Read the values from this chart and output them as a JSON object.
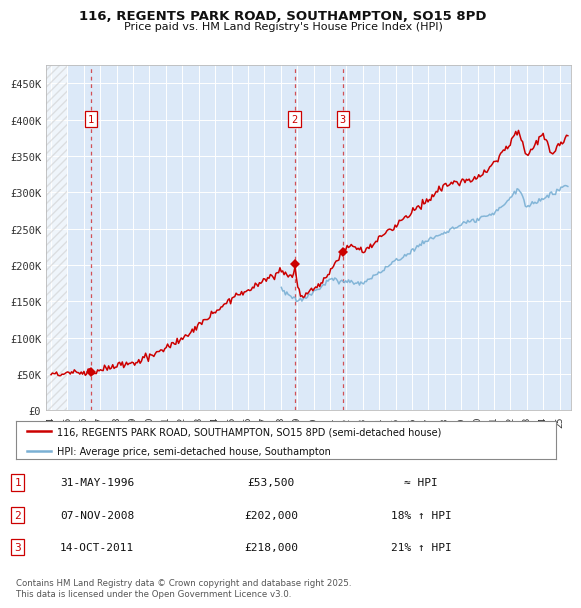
{
  "title1": "116, REGENTS PARK ROAD, SOUTHAMPTON, SO15 8PD",
  "title2": "Price paid vs. HM Land Registry's House Price Index (HPI)",
  "legend_red": "116, REGENTS PARK ROAD, SOUTHAMPTON, SO15 8PD (semi-detached house)",
  "legend_blue": "HPI: Average price, semi-detached house, Southampton",
  "fig_bg": "#ffffff",
  "plot_bg": "#dce9f8",
  "grid_color": "#ffffff",
  "red_color": "#cc0000",
  "blue_color": "#7ab0d4",
  "transactions": [
    {
      "num": 1,
      "date_x": 1996.42,
      "price": 53500,
      "label": "1",
      "date_str": "31-MAY-1996",
      "vs_hpi": "≈ HPI"
    },
    {
      "num": 2,
      "date_x": 2008.84,
      "price": 202000,
      "label": "2",
      "date_str": "07-NOV-2008",
      "vs_hpi": "18% ↑ HPI"
    },
    {
      "num": 3,
      "date_x": 2011.79,
      "price": 218000,
      "label": "3",
      "date_str": "14-OCT-2011",
      "vs_hpi": "21% ↑ HPI"
    }
  ],
  "footer": "Contains HM Land Registry data © Crown copyright and database right 2025.\nThis data is licensed under the Open Government Licence v3.0.",
  "ylim": [
    0,
    475000
  ],
  "xlim": [
    1993.7,
    2025.7
  ],
  "yticks": [
    0,
    50000,
    100000,
    150000,
    200000,
    250000,
    300000,
    350000,
    400000,
    450000
  ],
  "ytick_labels": [
    "£0",
    "£50K",
    "£100K",
    "£150K",
    "£200K",
    "£250K",
    "£300K",
    "£350K",
    "£400K",
    "£450K"
  ],
  "xtick_years": [
    1994,
    1995,
    1996,
    1997,
    1998,
    1999,
    2000,
    2001,
    2002,
    2003,
    2004,
    2005,
    2006,
    2007,
    2008,
    2009,
    2010,
    2011,
    2012,
    2013,
    2014,
    2015,
    2016,
    2017,
    2018,
    2019,
    2020,
    2021,
    2022,
    2023,
    2024,
    2025
  ]
}
